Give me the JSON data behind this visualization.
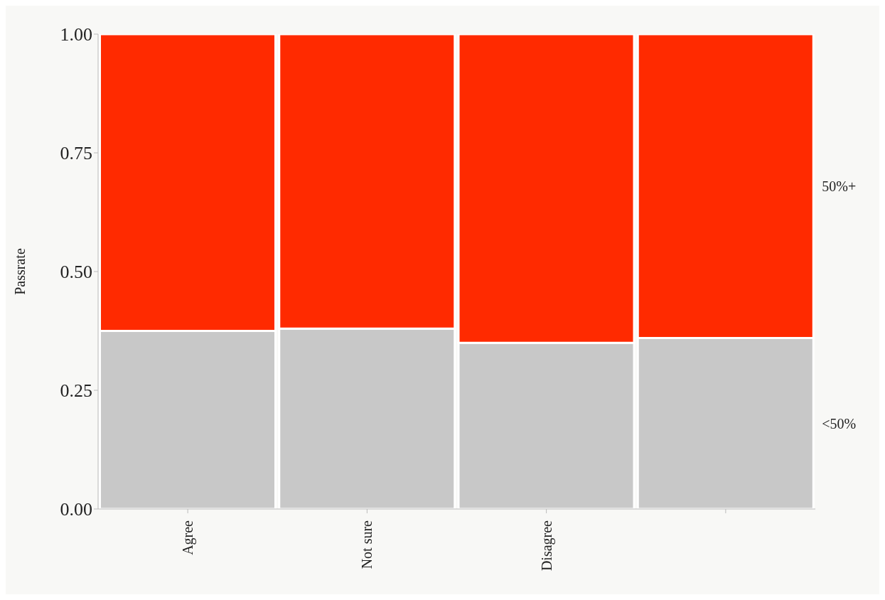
{
  "chart_data": {
    "type": "bar",
    "stacked": true,
    "ylabel": "Passrate",
    "categories": [
      "Agree",
      "Not sure",
      "Disagree",
      null
    ],
    "series": [
      {
        "name": "<50%",
        "color": "#c8c8c8",
        "values": [
          0.375,
          0.38,
          0.35,
          0.36
        ]
      },
      {
        "name": "50%+",
        "color": "#ff2a00",
        "values": [
          0.625,
          0.62,
          0.65,
          0.64
        ]
      }
    ],
    "ylim": [
      0,
      1
    ],
    "yticks": [
      {
        "value": 0,
        "label": "0.00"
      },
      {
        "value": 0.25,
        "label": "0.25"
      },
      {
        "value": 0.5,
        "label": "0.50"
      },
      {
        "value": 0.75,
        "label": "0.75"
      },
      {
        "value": 1,
        "label": "1.00"
      }
    ],
    "grid": false
  }
}
